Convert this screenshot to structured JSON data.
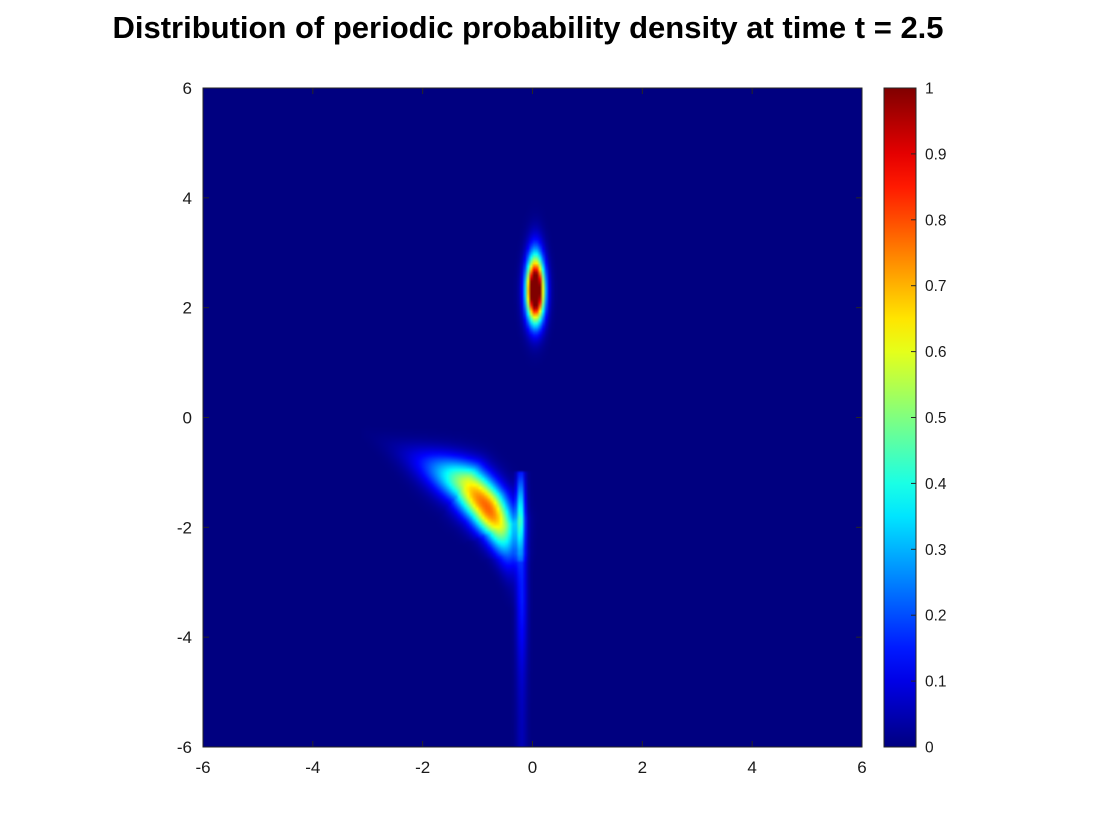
{
  "chart_data": {
    "type": "heatmap",
    "title": "Distribution of periodic probability density at time t = 2.5",
    "xlabel": "",
    "ylabel": "",
    "xlim": [
      -6,
      6
    ],
    "ylim": [
      -6,
      6
    ],
    "x_ticks": [
      -6,
      -4,
      -2,
      0,
      2,
      4,
      6
    ],
    "y_ticks": [
      -6,
      -4,
      -2,
      0,
      2,
      4,
      6
    ],
    "colormap": "jet",
    "clim": [
      0,
      1
    ],
    "colorbar": {
      "placement": "right",
      "ticks": [
        0,
        0.1,
        0.2,
        0.3,
        0.4,
        0.5,
        0.6,
        0.7,
        0.8,
        0.9,
        1
      ],
      "tick_labels": [
        "0",
        "0.1",
        "0.2",
        "0.3",
        "0.4",
        "0.5",
        "0.6",
        "0.7",
        "0.8",
        "0.9",
        "1"
      ]
    },
    "grid": false,
    "features": [
      {
        "kind": "peak",
        "x": 0.05,
        "y": 2.3,
        "max_value": 1.0,
        "saturated": true
      },
      {
        "kind": "curved-ridge",
        "path": [
          [
            -3.0,
            -0.3
          ],
          [
            -2.0,
            -0.8
          ],
          [
            -1.2,
            -1.2
          ],
          [
            -0.85,
            -1.6
          ],
          [
            -0.6,
            -2.0
          ],
          [
            -0.45,
            -2.5
          ],
          [
            -0.35,
            -3.3
          ]
        ],
        "max_value": 0.78,
        "max_at": [
          -0.85,
          -1.65
        ]
      },
      {
        "kind": "faint-streak",
        "x": -0.2,
        "y_range": [
          -6.0,
          -1.0
        ],
        "max_value": 0.15
      }
    ]
  }
}
